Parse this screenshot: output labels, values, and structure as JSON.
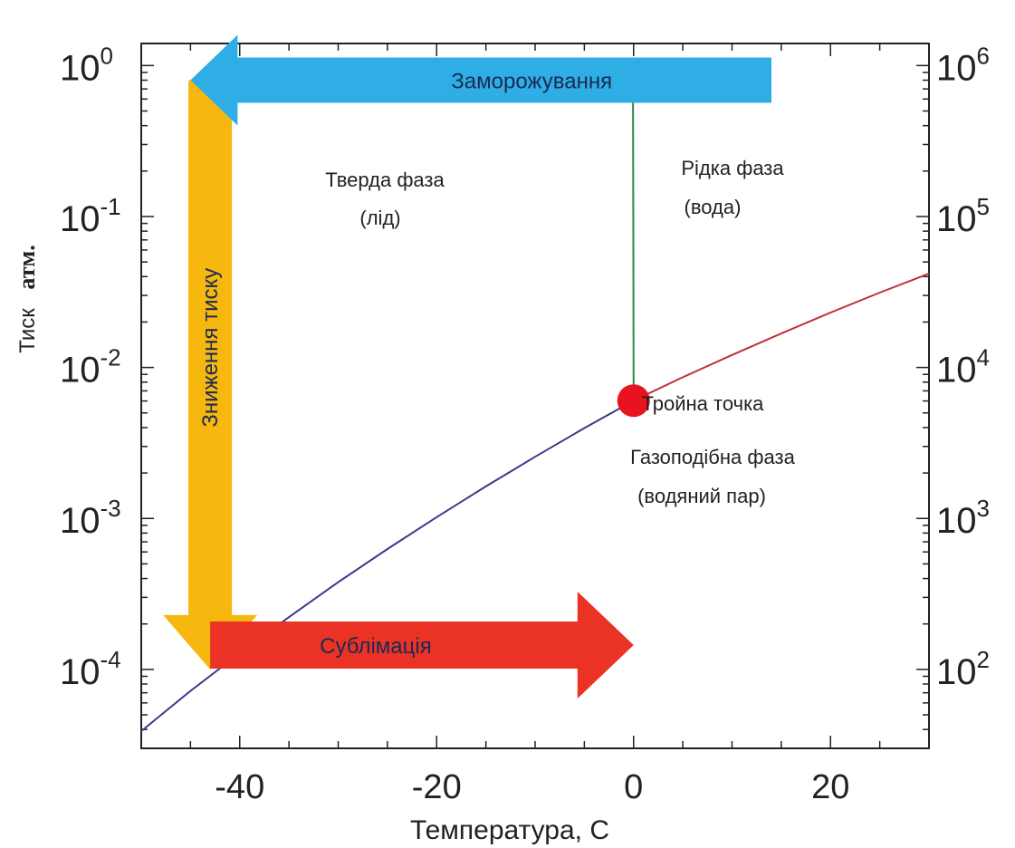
{
  "chart_data": {
    "type": "line",
    "title": "",
    "xlabel": "Температура, С",
    "ylabel_main": "Тиск",
    "ylabel_unit": "атм.",
    "xlim": [
      -50,
      30
    ],
    "ylim": [
      3e-05,
      1.4
    ],
    "y_scale": "log",
    "x_ticks": [
      {
        "value": -40,
        "label": "-40"
      },
      {
        "value": -20,
        "label": "-20"
      },
      {
        "value": 0,
        "label": "0"
      },
      {
        "value": 20,
        "label": "20"
      }
    ],
    "y_ticks_left": [
      {
        "value": 1,
        "base": "10",
        "exp": "0"
      },
      {
        "value": 0.1,
        "base": "10",
        "exp": "-1"
      },
      {
        "value": 0.01,
        "base": "10",
        "exp": "-2"
      },
      {
        "value": 0.001,
        "base": "10",
        "exp": "-3"
      },
      {
        "value": 0.0001,
        "base": "10",
        "exp": "-4"
      }
    ],
    "y_ticks_right": [
      {
        "value": 1,
        "base": "10",
        "exp": "6"
      },
      {
        "value": 0.1,
        "base": "10",
        "exp": "5"
      },
      {
        "value": 0.01,
        "base": "10",
        "exp": "4"
      },
      {
        "value": 0.001,
        "base": "10",
        "exp": "3"
      },
      {
        "value": 0.0001,
        "base": "10",
        "exp": "2"
      }
    ],
    "series": [
      {
        "color": "#3a3a8c",
        "points": [
          [
            -50,
            3.9e-05
          ],
          [
            -45,
            7.2e-05
          ],
          [
            -40,
            0.000128
          ],
          [
            -35,
            0.000222
          ],
          [
            -30,
            0.000378
          ],
          [
            -25,
            0.000627
          ],
          [
            -20,
            0.00102
          ],
          [
            -15,
            0.00163
          ],
          [
            -10,
            0.00256
          ],
          [
            -5,
            0.00397
          ],
          [
            0,
            0.00603
          ]
        ]
      },
      {
        "color": "#c0303a",
        "points": [
          [
            0,
            0.00603
          ],
          [
            5,
            0.00861
          ],
          [
            10,
            0.0121
          ],
          [
            15,
            0.0168
          ],
          [
            20,
            0.0231
          ],
          [
            25,
            0.0313
          ],
          [
            30,
            0.0419
          ]
        ]
      },
      {
        "color": "#2e8b3a",
        "points": [
          [
            0,
            0.00603
          ],
          [
            -0.02,
            0.06
          ],
          [
            -0.05,
            0.4
          ],
          [
            -0.07,
            1.0
          ]
        ]
      }
    ],
    "triple_point": {
      "x": 0,
      "y": 0.00603,
      "color": "#e8131f",
      "label": "Тройна точка"
    },
    "regions": [
      {
        "line1": "Тверда фаза",
        "line2": "(лід)"
      },
      {
        "line1": "Рідка фаза",
        "line2": "(вода)"
      },
      {
        "line1": "Газоподібна фаза",
        "line2": "(водяний пар)"
      }
    ],
    "arrows": [
      {
        "label": "Заморожування",
        "color": "#2eaee4",
        "x_from": 14,
        "x_to": -45,
        "y": 0.8
      },
      {
        "label": "Зниження тиску",
        "color": "#f6b80f",
        "x": -43,
        "y_from": 0.8,
        "y_to": 0.0001
      },
      {
        "label": "Сублімація",
        "color": "#ea3324",
        "x_from": -43,
        "x_to": 0,
        "y": 0.000145
      }
    ],
    "grid": false,
    "legend": "none"
  }
}
